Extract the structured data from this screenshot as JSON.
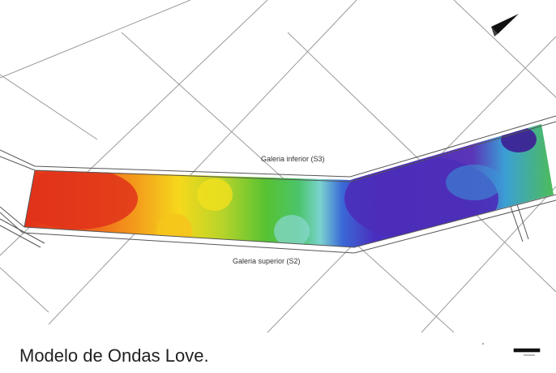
{
  "map": {
    "galleries": {
      "inferior": "Galeria inferior (S3)",
      "superior": "Galeria superior (S2)"
    },
    "icons": {
      "north_arrow": "north-arrow-icon",
      "scale_bar": "scale-bar-icon"
    },
    "colors": {
      "high": "#e8351c",
      "mid_high": "#f9d51c",
      "mid": "#4dc432",
      "mid_low": "#7ad3d6",
      "low": "#4a2eb8",
      "lowest": "#3d1d95"
    }
  },
  "caption": "Modelo de Ondas Love."
}
